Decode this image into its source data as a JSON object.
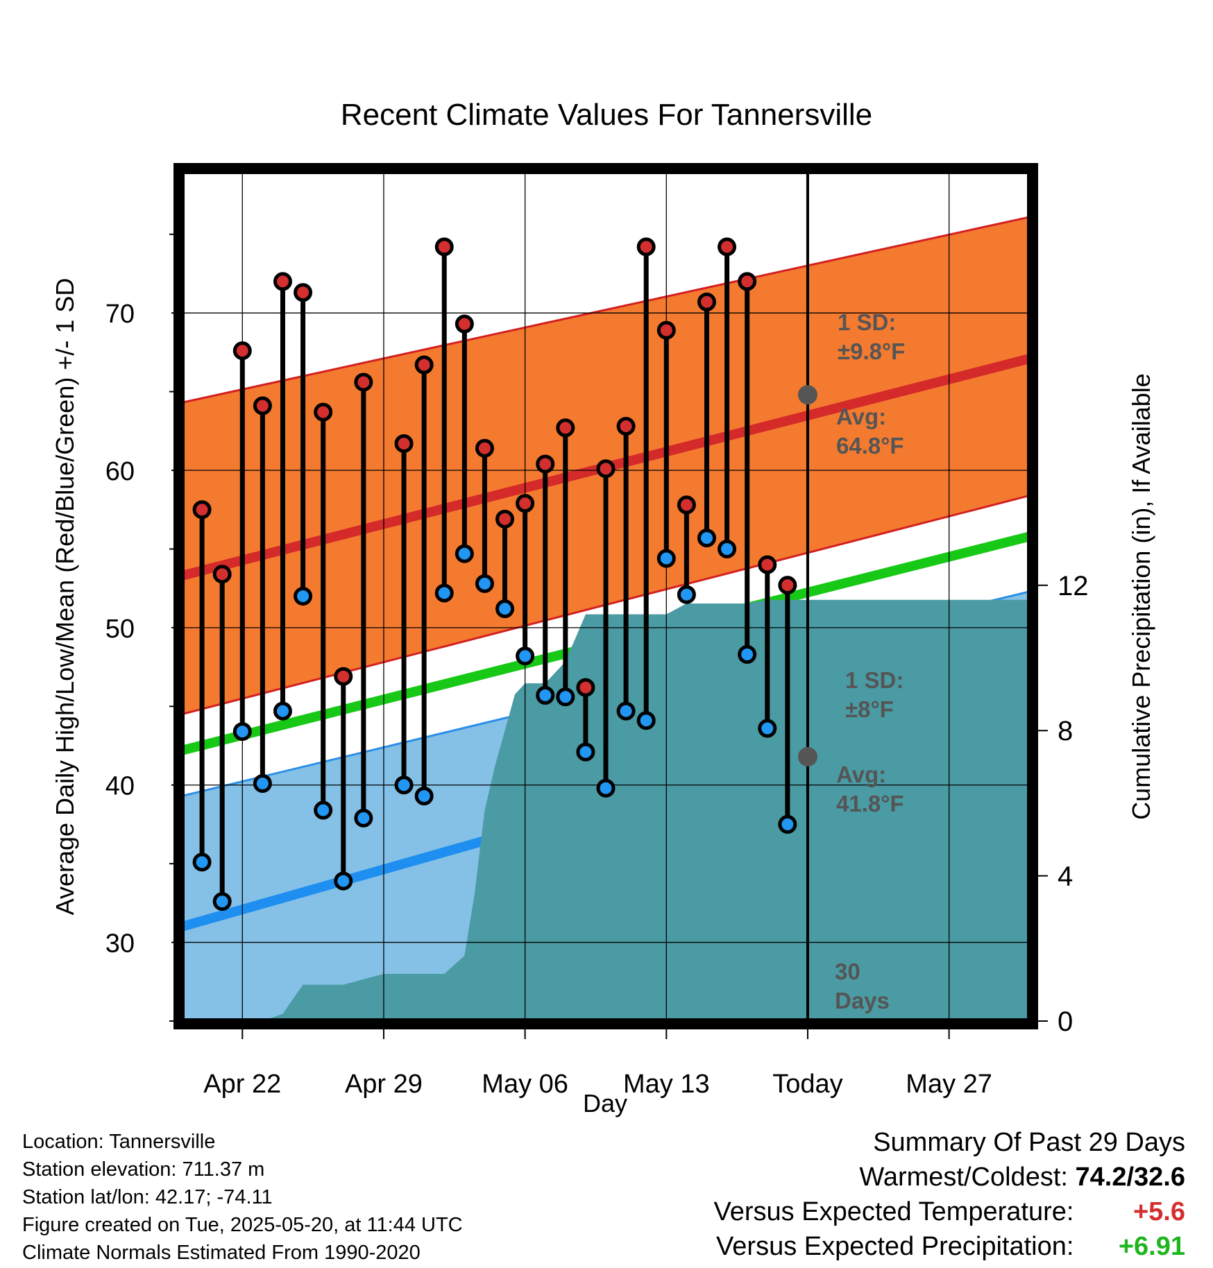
{
  "chart_data": {
    "type": "line",
    "title": "Recent Climate Values For Tannersville",
    "xlabel": "Day",
    "ylabel": "Average Daily High/Low/Mean (Red/Blue/Green) +/- 1 SD",
    "y2label": "Cumulative Precipitation (in), If Available",
    "x_start": "Apr 19",
    "x_end": "May 31",
    "ylim": [
      25,
      79
    ],
    "y2lim": [
      0,
      23.4
    ],
    "y_ticks": [
      30,
      40,
      50,
      60,
      70
    ],
    "y2_ticks": [
      0,
      4,
      8,
      12
    ],
    "x_ticks": [
      {
        "date": "Apr 22",
        "label": "Apr 22"
      },
      {
        "date": "Apr 29",
        "label": "Apr 29"
      },
      {
        "date": "May 06",
        "label": "May 06"
      },
      {
        "date": "May 13",
        "label": "May 13"
      },
      {
        "date": "May 20",
        "label": "Today"
      },
      {
        "date": "May 27",
        "label": "May 27"
      }
    ],
    "today": "May 20",
    "today_label": [
      "30",
      "Days"
    ],
    "normals": {
      "dates": [
        "Apr 19",
        "May 31"
      ],
      "high_avg": [
        53.3,
        67.1
      ],
      "high_upper": [
        64.3,
        76.1
      ],
      "high_lower": [
        44.5,
        58.4
      ],
      "low_avg": [
        31.0,
        46.3
      ],
      "low_upper": [
        39.3,
        52.3
      ],
      "low_lower": [
        22.0,
        34.5
      ],
      "mean_avg": [
        42.2,
        55.8
      ]
    },
    "annotations": {
      "high_sd": [
        "1 SD:",
        "±9.8°F"
      ],
      "high_avg": [
        "Avg:",
        "64.8°F"
      ],
      "low_sd": [
        "1 SD:",
        "±8°F"
      ],
      "low_avg": [
        "Avg:",
        "41.8°F"
      ],
      "high_avg_value": 64.8,
      "low_avg_value": 41.8
    },
    "series": [
      {
        "name": "High",
        "color": "#d32f2f",
        "x": [
          "Apr 20",
          "Apr 21",
          "Apr 22",
          "Apr 23",
          "Apr 24",
          "Apr 25",
          "Apr 26",
          "Apr 27",
          "Apr 28",
          "Apr 30",
          "May 01",
          "May 02",
          "May 03",
          "May 04",
          "May 05",
          "May 06",
          "May 07",
          "May 08",
          "May 09",
          "May 10",
          "May 11",
          "May 12",
          "May 13",
          "May 14",
          "May 15",
          "May 16",
          "May 17",
          "May 18",
          "May 19"
        ],
        "values": [
          57.5,
          53.4,
          67.6,
          64.1,
          72.0,
          71.3,
          63.7,
          46.9,
          65.6,
          61.7,
          66.7,
          74.2,
          69.3,
          61.4,
          56.9,
          57.9,
          60.4,
          62.7,
          46.2,
          60.1,
          62.8,
          74.2,
          68.9,
          57.8,
          70.7,
          74.2,
          72.0,
          54.0,
          52.7
        ]
      },
      {
        "name": "Low",
        "color": "#2196f3",
        "x": [
          "Apr 20",
          "Apr 21",
          "Apr 22",
          "Apr 23",
          "Apr 24",
          "Apr 25",
          "Apr 26",
          "Apr 27",
          "Apr 28",
          "Apr 30",
          "May 01",
          "May 02",
          "May 03",
          "May 04",
          "May 05",
          "May 06",
          "May 07",
          "May 08",
          "May 09",
          "May 10",
          "May 11",
          "May 12",
          "May 13",
          "May 14",
          "May 15",
          "May 16",
          "May 17",
          "May 18",
          "May 19"
        ],
        "values": [
          35.1,
          32.6,
          43.4,
          40.1,
          44.7,
          52.0,
          38.4,
          33.9,
          37.9,
          40.0,
          39.3,
          52.2,
          54.7,
          52.8,
          51.2,
          48.2,
          45.7,
          45.6,
          42.1,
          39.8,
          44.7,
          44.1,
          54.4,
          52.1,
          55.7,
          55.0,
          48.3,
          43.6,
          37.5
        ]
      }
    ],
    "precipitation": {
      "name": "Cumulative Precipitation",
      "color": "#4a9ba3",
      "x": [
        "Apr 19",
        "Apr 23",
        "Apr 24",
        "Apr 25",
        "Apr 26",
        "Apr 27",
        "Apr 28",
        "Apr 29",
        "Apr 30",
        "May 01",
        "May 02",
        "May 02.5",
        "May 03",
        "May 03.5",
        "May 04",
        "May 04.5",
        "May 05",
        "May 05.5",
        "May 06",
        "May 07",
        "May 08",
        "May 09",
        "May 10",
        "May 11",
        "May 12",
        "May 13",
        "May 14",
        "May 15",
        "May 16",
        "May 17",
        "May 18",
        "May 31"
      ],
      "values": [
        0,
        0,
        0.2,
        1.0,
        1.0,
        1.0,
        1.15,
        1.3,
        1.3,
        1.3,
        1.3,
        1.55,
        1.8,
        3.5,
        5.8,
        7.0,
        8.0,
        9.0,
        9.3,
        9.3,
        9.9,
        11.2,
        11.2,
        11.2,
        11.2,
        11.2,
        11.5,
        11.5,
        11.5,
        11.5,
        11.6,
        11.6
      ]
    }
  },
  "info": {
    "location": "Location: Tannersville",
    "elevation": "Station elevation: 711.37 m",
    "latlon": "Station lat/lon: 42.17; -74.11",
    "created": "Figure created on Tue, 2025-05-20, at 11:44 UTC",
    "normals": "Climate Normals Estimated From 1990-2020"
  },
  "summary": {
    "heading": "Summary Of Past 29 Days",
    "warmest_label": "Warmest/Coldest:",
    "warmest_value": "74.2/32.6",
    "temp_label": "Versus Expected Temperature:",
    "temp_value": "+5.6",
    "precip_label": "Versus Expected Precipitation:",
    "precip_value": "+6.91"
  }
}
